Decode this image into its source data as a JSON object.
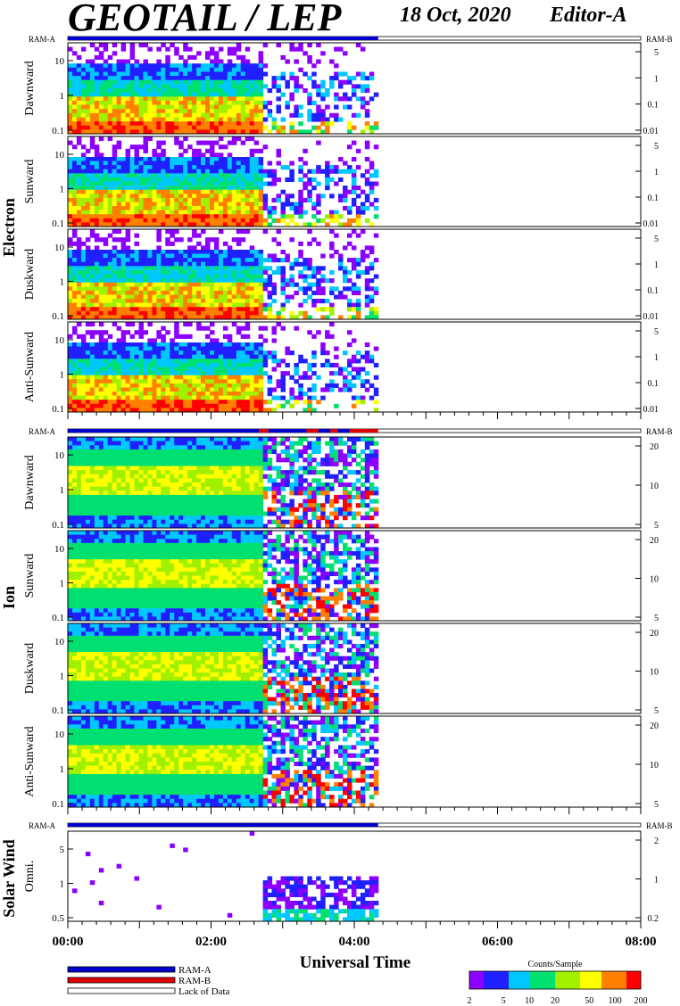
{
  "header": {
    "title": "GEOTAIL / LEP",
    "date": "18 Oct, 2020",
    "editor": "Editor-A"
  },
  "chart_data": {
    "type": "heatmap",
    "xlabel": "Universal Time",
    "x_ticks": [
      "00:00",
      "02:00",
      "04:00",
      "06:00",
      "08:00"
    ],
    "xlim": [
      "00:00",
      "08:00"
    ],
    "data_end": "04:20",
    "legend": {
      "items": [
        "RAM-A",
        "RAM-B",
        "Lack of Data"
      ],
      "colors": [
        "#0000cc",
        "#dd0000",
        "#ffffff"
      ]
    },
    "colorbar": {
      "label": "Counts/Sample",
      "ticks": [
        "2",
        "5",
        "10",
        "20",
        "50",
        "100",
        "200"
      ],
      "colors": [
        "#8b00ff",
        "#2020ff",
        "#00c8ff",
        "#00e070",
        "#a0f000",
        "#ffff00",
        "#ff8000",
        "#ff0000"
      ]
    },
    "groups": [
      {
        "name": "Electron",
        "ram_label_left": "RAM-A",
        "ram_label_right": "RAM-B",
        "ram_segments": [
          {
            "from": "00:00",
            "to": "04:20",
            "mode": "RAM-A"
          }
        ],
        "panels": [
          {
            "label": "Dawnward",
            "left_ticks": [
              "10",
              "1",
              "0.1"
            ],
            "right_ticks": [
              "5",
              "1",
              "0.1",
              "0.01"
            ]
          },
          {
            "label": "Sunward",
            "left_ticks": [
              "10",
              "1",
              "0.1"
            ],
            "right_ticks": [
              "5",
              "1",
              "0.1",
              "0.01"
            ]
          },
          {
            "label": "Duskward",
            "left_ticks": [
              "10",
              "1",
              "0.1"
            ],
            "right_ticks": [
              "5",
              "1",
              "0.1",
              "0.01"
            ]
          },
          {
            "label": "Anti-Sunward",
            "left_ticks": [
              "10",
              "1",
              "0.1"
            ],
            "right_ticks": [
              "5",
              "1",
              "0.1",
              "0.01"
            ]
          }
        ]
      },
      {
        "name": "Ion",
        "ram_label_left": "RAM-A",
        "ram_label_right": "RAM-B",
        "ram_segments": [
          {
            "from": "00:00",
            "to": "02:40",
            "mode": "RAM-A"
          },
          {
            "from": "02:40",
            "to": "02:48",
            "mode": "RAM-B"
          },
          {
            "from": "02:48",
            "to": "03:20",
            "mode": "RAM-A"
          },
          {
            "from": "03:20",
            "to": "03:30",
            "mode": "RAM-B"
          },
          {
            "from": "03:30",
            "to": "03:40",
            "mode": "RAM-A"
          },
          {
            "from": "03:40",
            "to": "03:46",
            "mode": "RAM-B"
          },
          {
            "from": "03:46",
            "to": "03:56",
            "mode": "RAM-A"
          },
          {
            "from": "03:56",
            "to": "04:20",
            "mode": "RAM-B"
          }
        ],
        "panels": [
          {
            "label": "Dawnward",
            "left_ticks": [
              "10",
              "1",
              "0.1"
            ],
            "right_ticks": [
              "20",
              "10",
              "5"
            ]
          },
          {
            "label": "Sunward",
            "left_ticks": [
              "10",
              "1",
              "0.1"
            ],
            "right_ticks": [
              "20",
              "10",
              "5"
            ]
          },
          {
            "label": "Duskward",
            "left_ticks": [
              "10",
              "1",
              "0.1"
            ],
            "right_ticks": [
              "20",
              "10",
              "5"
            ]
          },
          {
            "label": "Anti-Sunward",
            "left_ticks": [
              "10",
              "1",
              "0.1"
            ],
            "right_ticks": [
              "20",
              "10",
              "5"
            ]
          }
        ]
      },
      {
        "name": "Solar Wind",
        "ram_label_left": "RAM-A",
        "ram_label_right": "RAM-B",
        "ram_segments": [
          {
            "from": "00:00",
            "to": "04:20",
            "mode": "RAM-A"
          }
        ],
        "panels": [
          {
            "label": "Omni.",
            "left_ticks": [
              "5",
              "1",
              "0.5"
            ],
            "right_ticks": [
              "2",
              "1",
              "0.2"
            ]
          }
        ]
      }
    ]
  }
}
